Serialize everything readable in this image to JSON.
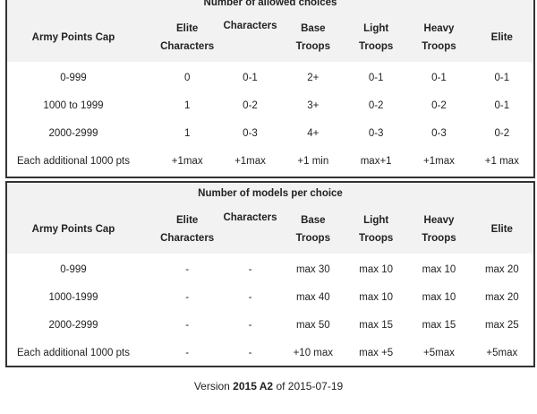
{
  "columns": [
    "Army Points Cap",
    "Elite Characters",
    "Characters",
    "Base Troops",
    "Light Troops",
    "Heavy Troops",
    "Elite"
  ],
  "table1": {
    "title": "Number of allowed choices",
    "rows": [
      [
        "0-999",
        "0",
        "0-1",
        "2+",
        "0-1",
        "0-1",
        "0-1"
      ],
      [
        "1000 to 1999",
        "1",
        "0-2",
        "3+",
        "0-2",
        "0-2",
        "0-1"
      ],
      [
        "2000-2999",
        "1",
        "0-3",
        "4+",
        "0-3",
        "0-3",
        "0-2"
      ],
      [
        "Each additional 1000 pts",
        "+1max",
        "+1max",
        "+1 min",
        "max+1",
        "+1max",
        "+1 max"
      ]
    ]
  },
  "table2": {
    "title": "Number of models per choice",
    "rows": [
      [
        "0-999",
        "-",
        "-",
        "max 30",
        "max 10",
        "max 10",
        "max 20"
      ],
      [
        "1000-1999",
        "-",
        "-",
        "max 40",
        "max 10",
        "max 10",
        "max 20"
      ],
      [
        "2000-2999",
        "-",
        "-",
        "max 50",
        "max 15",
        "max 15",
        "max 25"
      ],
      [
        "Each additional 1000 pts",
        "-",
        "-",
        "+10 max",
        "max +5",
        "+5max",
        "+5max"
      ]
    ]
  },
  "version": {
    "prefix": "Version ",
    "code": "2015 A2",
    "suffix": " of 2015-07-19"
  }
}
